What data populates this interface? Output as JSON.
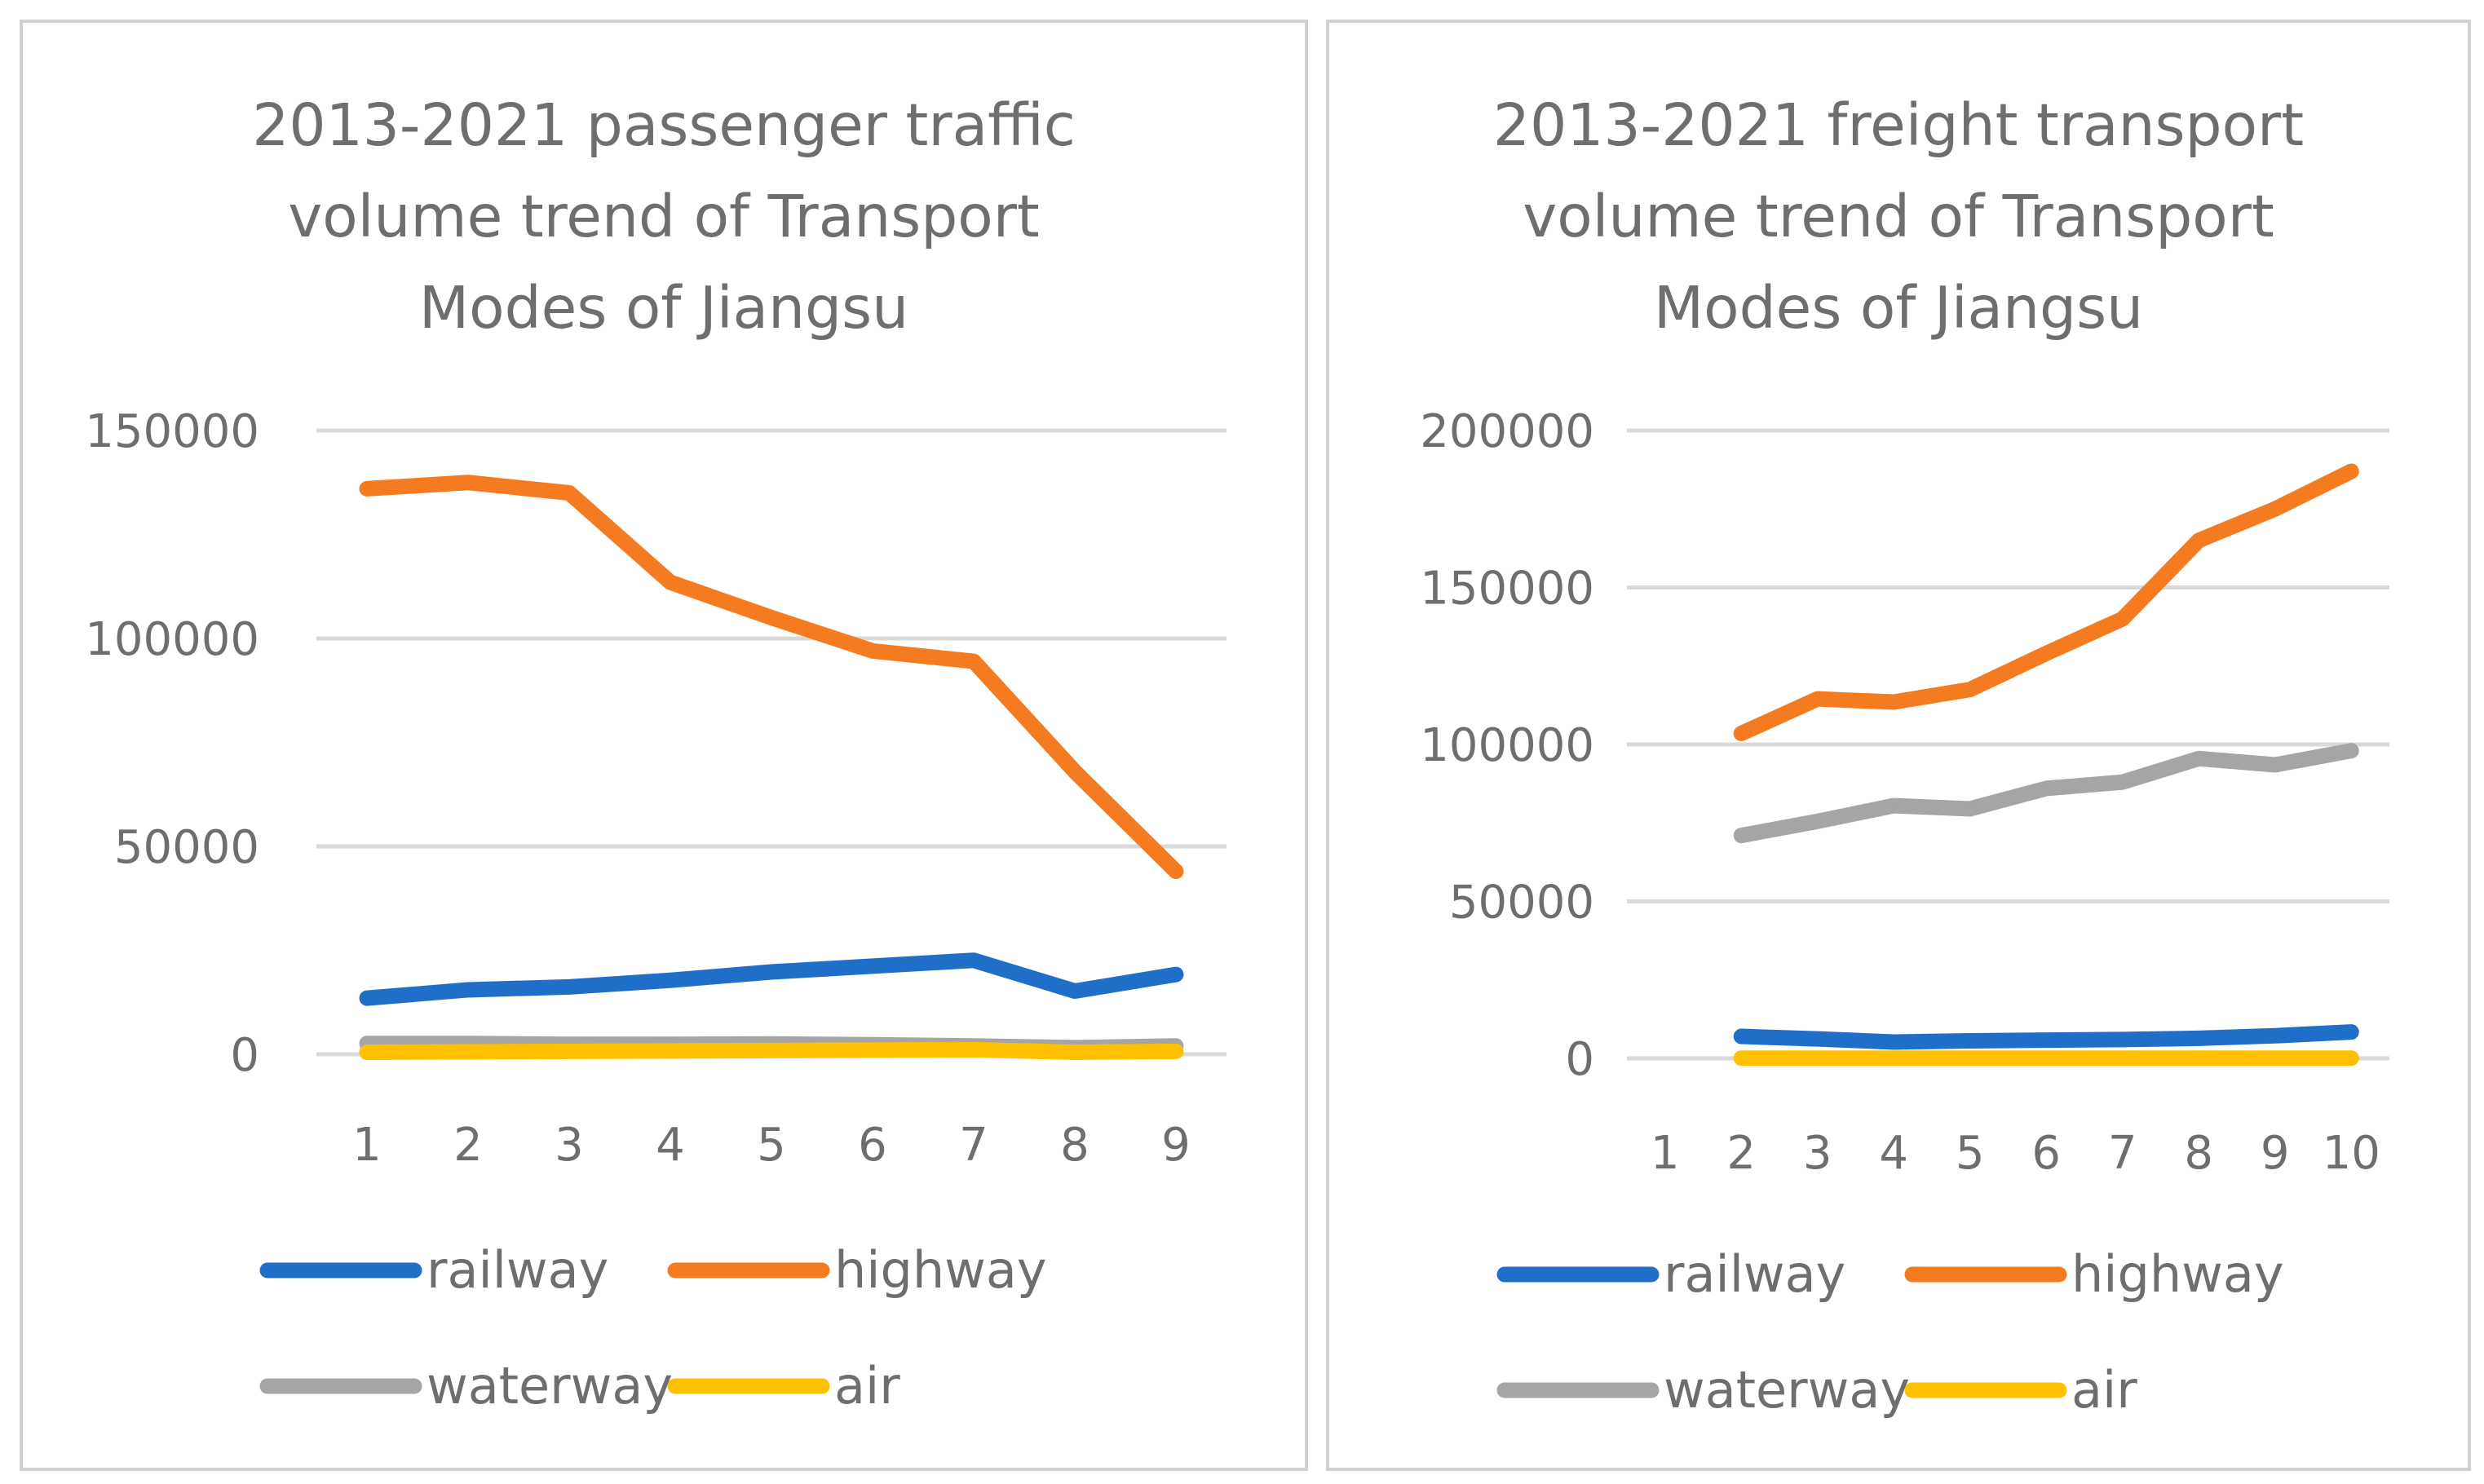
{
  "chart_data": [
    {
      "type": "line",
      "title": "2013-2021 passenger traffic volume trend of Transport Modes of Jiangsu",
      "title_lines": [
        "2013-2021 passenger traffic",
        "volume trend of Transport",
        "Modes of Jiangsu"
      ],
      "categories": [
        "1",
        "2",
        "3",
        "4",
        "5",
        "6",
        "7",
        "8",
        "9"
      ],
      "ylim": [
        0,
        150000
      ],
      "yticks": [
        0,
        50000,
        100000,
        150000
      ],
      "ytick_labels": [
        "0",
        "50000",
        "100000",
        "150000"
      ],
      "grid": true,
      "legend_position": "bottom",
      "series": [
        {
          "name": "railway",
          "color": "#1f6fc8",
          "values": [
            13500,
            15500,
            16200,
            17800,
            19800,
            21200,
            22600,
            15200,
            19200
          ]
        },
        {
          "name": "highway",
          "color": "#f47b20",
          "values": [
            136000,
            137500,
            135000,
            113500,
            105000,
            97000,
            94500,
            68000,
            44000
          ]
        },
        {
          "name": "waterway",
          "color": "#a5a5a5",
          "values": [
            2600,
            2600,
            2400,
            2400,
            2500,
            2300,
            2000,
            1600,
            2000
          ]
        },
        {
          "name": "air",
          "color": "#ffc000",
          "values": [
            500,
            600,
            700,
            800,
            900,
            1000,
            1100,
            500,
            700
          ]
        }
      ]
    },
    {
      "type": "line",
      "title": "2013-2021 freight transport volume trend of Transport Modes of Jiangsu",
      "title_lines": [
        "2013-2021 freight transport",
        "volume trend of Transport",
        "Modes of Jiangsu"
      ],
      "categories": [
        "1",
        "2",
        "3",
        "4",
        "5",
        "6",
        "7",
        "8",
        "9",
        "10"
      ],
      "ylim": [
        0,
        200000
      ],
      "yticks": [
        0,
        50000,
        100000,
        150000,
        200000
      ],
      "ytick_labels": [
        "0",
        "50000",
        "100000",
        "150000",
        "200000"
      ],
      "grid": true,
      "legend_position": "bottom",
      "series": [
        {
          "name": "railway",
          "color": "#1f6fc8",
          "values": [
            null,
            7000,
            6200,
            5200,
            5600,
            5800,
            6000,
            6400,
            7200,
            8400
          ]
        },
        {
          "name": "highway",
          "color": "#f47b20",
          "values": [
            null,
            103500,
            114500,
            113500,
            117500,
            129000,
            140000,
            165000,
            175000,
            187000
          ]
        },
        {
          "name": "waterway",
          "color": "#a5a5a5",
          "values": [
            null,
            71000,
            75500,
            80500,
            79500,
            86000,
            88000,
            95500,
            93500,
            98000
          ]
        },
        {
          "name": "air",
          "color": "#ffc000",
          "values": [
            null,
            80,
            80,
            80,
            80,
            80,
            80,
            80,
            80,
            80
          ]
        }
      ]
    }
  ]
}
